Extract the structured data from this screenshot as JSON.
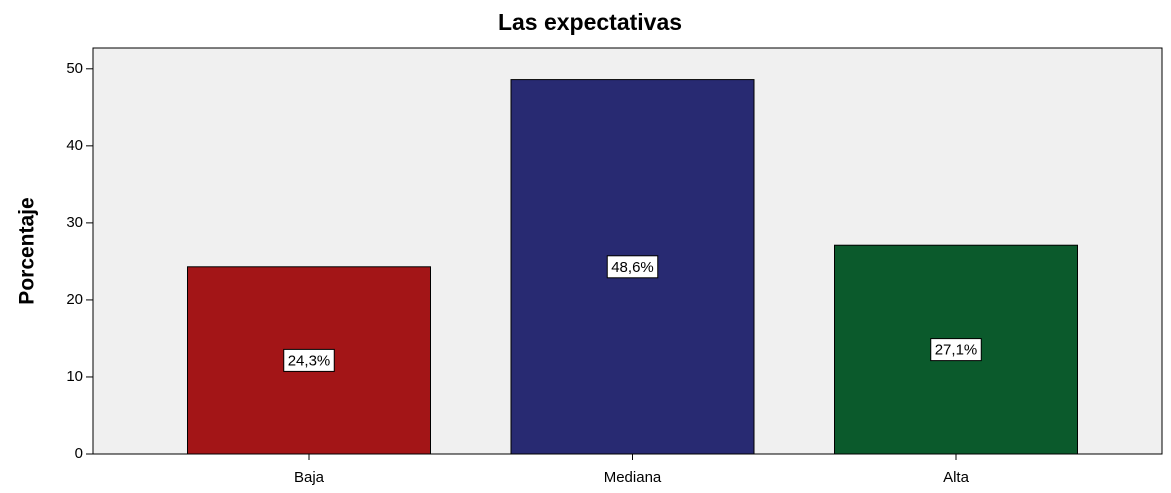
{
  "chart_data": {
    "type": "bar",
    "title": "Las expectativas",
    "y_label": "Porcentaje",
    "categories": [
      "Baja",
      "Mediana",
      "Alta"
    ],
    "values": [
      24.3,
      48.6,
      27.1
    ],
    "value_labels": [
      "24,3%",
      "48,6%",
      "27,1%"
    ],
    "colors": [
      "#a31517",
      "#282a72",
      "#0b5a2c"
    ],
    "ylim": [
      0,
      52.7
    ],
    "yticks": [
      0,
      10,
      20,
      30,
      40,
      50
    ]
  }
}
